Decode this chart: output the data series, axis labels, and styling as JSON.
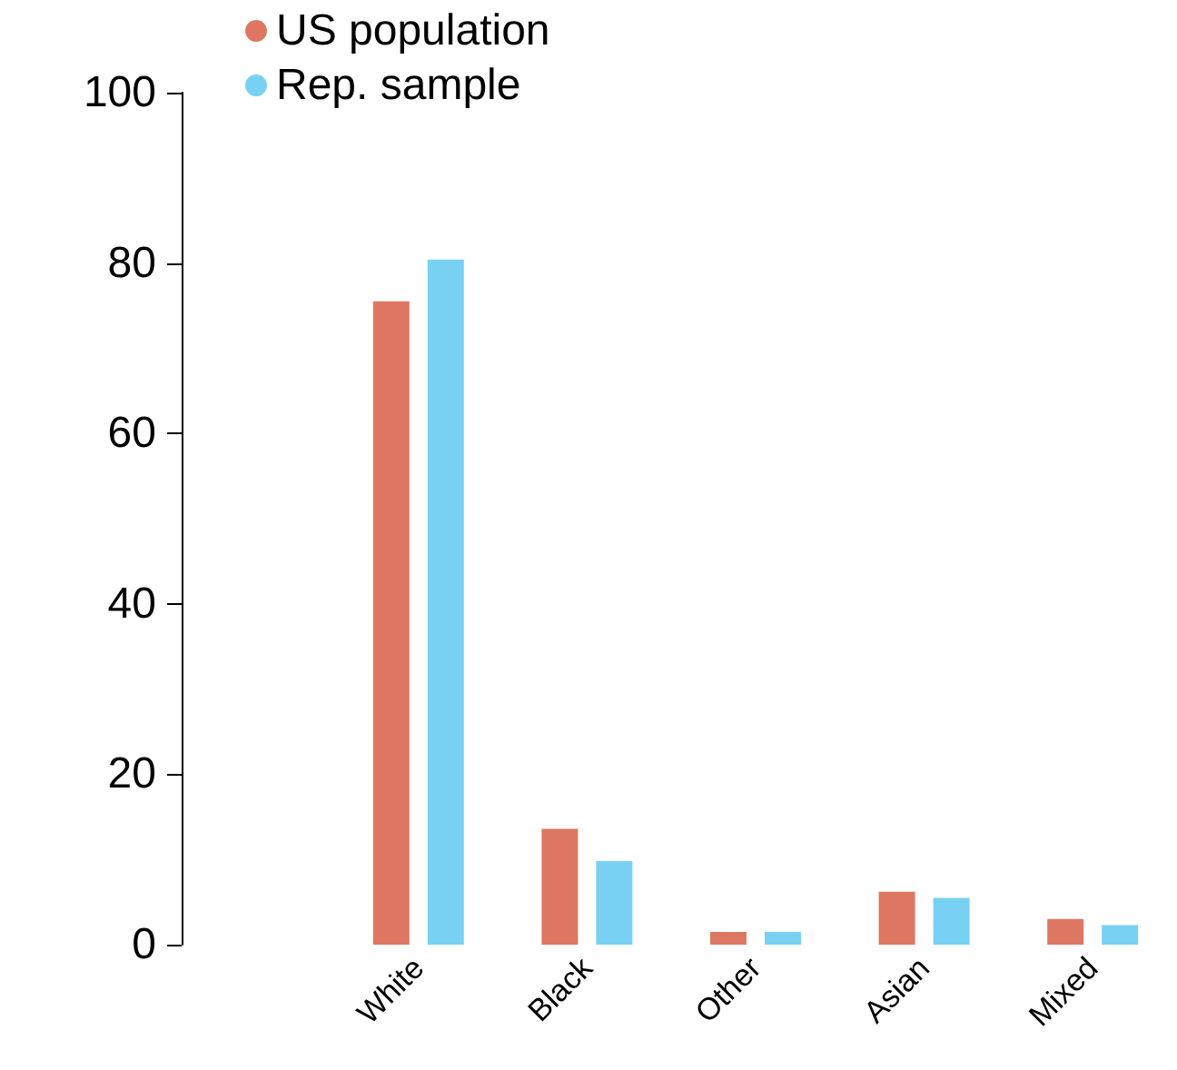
{
  "chart_data": {
    "type": "bar",
    "categories": [
      "White",
      "Black",
      "Other",
      "Asian",
      "Mixed"
    ],
    "series": [
      {
        "name": "US population",
        "color": "#de7762",
        "values": [
          75.5,
          13.6,
          1.5,
          6.2,
          3.0
        ]
      },
      {
        "name": "Rep. sample",
        "color": "#78d1f3",
        "values": [
          80.4,
          9.8,
          1.5,
          5.5,
          2.3
        ]
      }
    ],
    "ylim": [
      0,
      100
    ],
    "yticks": [
      0,
      20,
      40,
      60,
      80,
      100
    ],
    "grid": false,
    "legend": "top left"
  }
}
